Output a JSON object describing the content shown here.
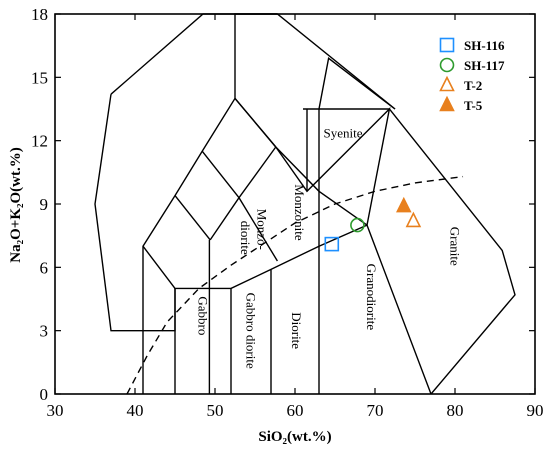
{
  "chart_data": {
    "type": "scatter",
    "xlabel": "SiO₂(wt.%)",
    "ylabel": "Na₂O+K₂O(wt.%)",
    "xlim": [
      30,
      90
    ],
    "ylim": [
      0,
      18
    ],
    "xticks": [
      30,
      40,
      50,
      60,
      70,
      80,
      90
    ],
    "yticks": [
      0,
      3,
      6,
      9,
      12,
      15,
      18
    ],
    "grid": false,
    "legend_position": "top-right",
    "series": [
      {
        "name": "SH-116",
        "marker": "open-square",
        "color": "#1e90ff",
        "points": [
          {
            "x": 64.6,
            "y": 7.1
          }
        ]
      },
      {
        "name": "SH-117",
        "marker": "open-circle",
        "color": "#2e9b2e",
        "points": [
          {
            "x": 67.8,
            "y": 8.0
          }
        ]
      },
      {
        "name": "T-2",
        "marker": "open-triangle",
        "color": "#e8801e",
        "points": [
          {
            "x": 74.8,
            "y": 8.2
          }
        ]
      },
      {
        "name": "T-5",
        "marker": "filled-triangle",
        "color": "#e8801e",
        "points": [
          {
            "x": 73.6,
            "y": 8.9
          }
        ]
      }
    ],
    "field_lines": [
      [
        [
          41,
          0
        ],
        [
          41,
          7
        ],
        [
          45,
          9.4
        ],
        [
          48.4,
          11.5
        ],
        [
          52.5,
          14
        ],
        [
          57.6,
          11.7
        ],
        [
          63,
          9.6
        ],
        [
          69,
          8
        ],
        [
          77,
          0
        ]
      ],
      [
        [
          41,
          7
        ],
        [
          45,
          5
        ],
        [
          52,
          5
        ],
        [
          57,
          5.9
        ],
        [
          63,
          7
        ],
        [
          69,
          8
        ],
        [
          71.8,
          13.5
        ],
        [
          61.5,
          9.6
        ],
        [
          57.6,
          11.7
        ]
      ],
      [
        [
          61,
          13.5
        ],
        [
          71.8,
          13.5
        ],
        [
          85.9,
          6.8
        ],
        [
          87.5,
          4.7
        ],
        [
          77,
          0
        ]
      ],
      [
        [
          45,
          0
        ],
        [
          45,
          5
        ]
      ],
      [
        [
          52,
          0
        ],
        [
          52,
          5
        ]
      ],
      [
        [
          57,
          0
        ],
        [
          57,
          5.9
        ]
      ],
      [
        [
          63,
          0
        ],
        [
          63,
          7
        ]
      ],
      [
        [
          49.4,
          7.3
        ],
        [
          53,
          9.3
        ],
        [
          57.8,
          6.3
        ]
      ],
      [
        [
          53,
          9.3
        ],
        [
          57.6,
          11.7
        ]
      ],
      [
        [
          45,
          9.4
        ],
        [
          49.4,
          7.3
        ]
      ],
      [
        [
          48.4,
          11.5
        ],
        [
          53,
          9.3
        ]
      ],
      [
        [
          52.5,
          14
        ],
        [
          52.5,
          18
        ],
        [
          57.8,
          18
        ],
        [
          72.5,
          13.5
        ]
      ],
      [
        [
          52.5,
          14
        ],
        [
          57.6,
          11.7
        ]
      ],
      [
        [
          37,
          14.2
        ],
        [
          48.5,
          18
        ],
        [
          57.8,
          18
        ]
      ],
      [
        [
          37,
          14.2
        ],
        [
          35,
          9
        ],
        [
          37,
          3
        ],
        [
          45,
          3
        ],
        [
          45,
          5
        ]
      ],
      [
        [
          49.3,
          0
        ],
        [
          49.3,
          7.3
        ]
      ],
      [
        [
          63,
          7
        ],
        [
          63,
          13.5
        ],
        [
          64.2,
          15.9
        ],
        [
          72.5,
          13.5
        ]
      ],
      [
        [
          61.5,
          9.6
        ],
        [
          61.5,
          13.5
        ]
      ]
    ],
    "dashed_divider": [
      [
        39,
        0
      ],
      [
        41.5,
        1.8
      ],
      [
        44,
        3.4
      ],
      [
        48,
        5
      ],
      [
        52,
        6.1
      ],
      [
        56,
        7.1
      ],
      [
        60,
        8.1
      ],
      [
        65,
        9
      ],
      [
        70,
        9.6
      ],
      [
        75,
        10
      ],
      [
        81,
        10.3
      ]
    ],
    "field_labels": [
      {
        "text": "Syenite",
        "x": 66,
        "y": 12.3,
        "rotate": 0
      },
      {
        "text": "Monzonite",
        "x": 60.4,
        "y": 8.6,
        "rotate": 90
      },
      {
        "text": "Monzo-",
        "x": 55.7,
        "y": 7.8,
        "rotate": 90
      },
      {
        "text": "diorite",
        "x": 53.6,
        "y": 7.4,
        "rotate": 90
      },
      {
        "text": "Gabbro",
        "x": 48.3,
        "y": 3.7,
        "rotate": 90
      },
      {
        "text": "Gabbro diorite",
        "x": 54.3,
        "y": 3.0,
        "rotate": 90
      },
      {
        "text": "Diorite",
        "x": 60.0,
        "y": 3.0,
        "rotate": 90
      },
      {
        "text": "Granodiorite",
        "x": 69.4,
        "y": 4.6,
        "rotate": 90
      },
      {
        "text": "Granite",
        "x": 79.8,
        "y": 7.0,
        "rotate": 90
      }
    ]
  }
}
